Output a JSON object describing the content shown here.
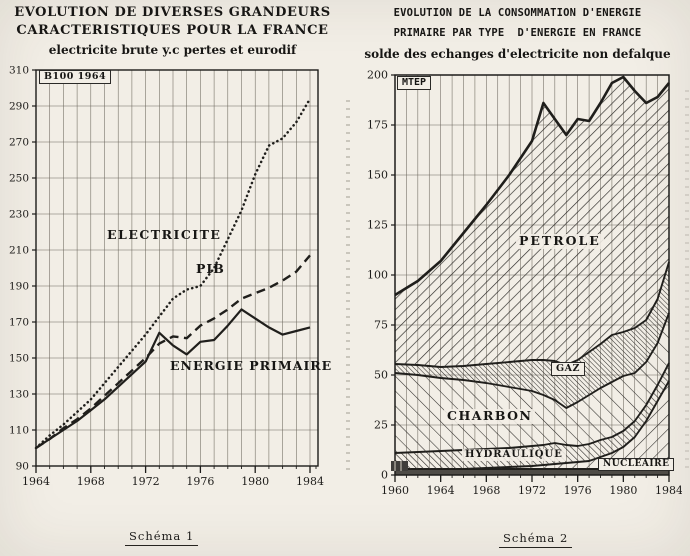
{
  "page_bg": "#f2eee6",
  "ink": "#1d1c1a",
  "left_chart": {
    "title_line1": "EVOLUTION DE DIVERSES GRANDEURS",
    "title_line2": "CARACTERISTIQUES POUR LA FRANCE",
    "subtitle": "electricite brute y.c pertes et eurodif",
    "corner_box": "B100 1964",
    "caption": "Schéma 1"
  },
  "right_chart": {
    "title_line1": "EVOLUTION DE LA CONSOMMATION D'ENERGIE",
    "title_line2": "PRIMAIRE PAR TYPE  D'ENERGIE EN FRANCE",
    "subtitle": "solde des echanges d'electricite non defalque",
    "corner_box": "MTEP",
    "caption": "Schéma 2"
  },
  "chart_data": [
    {
      "type": "line",
      "title": "EVOLUTION DE DIVERSES GRANDEURS CARACTERISTIQUES POUR LA FRANCE",
      "subtitle": "electricite brute y.c pertes et eurodif",
      "index_base": "B100 1964",
      "x": [
        1964,
        1965,
        1966,
        1967,
        1968,
        1969,
        1970,
        1971,
        1972,
        1973,
        1974,
        1975,
        1976,
        1977,
        1978,
        1979,
        1980,
        1981,
        1982,
        1983,
        1984
      ],
      "x_range": [
        1964,
        1984
      ],
      "y_range": [
        90,
        310
      ],
      "y_ticks": [
        90,
        110,
        130,
        150,
        170,
        190,
        210,
        230,
        250,
        270,
        290,
        310
      ],
      "x_ticks": [
        1964,
        1968,
        1972,
        1976,
        1980,
        1984
      ],
      "grid": true,
      "series": [
        {
          "name": "ELECTRICITE",
          "line_style": "dotted",
          "values": [
            100,
            107,
            113,
            120,
            127,
            136,
            145,
            154,
            163,
            173,
            183,
            188,
            190,
            200,
            216,
            232,
            252,
            268,
            272,
            281,
            294
          ]
        },
        {
          "name": "PIB",
          "line_style": "dashed",
          "values": [
            100,
            105,
            111,
            116,
            122,
            129,
            136,
            143,
            150,
            158,
            162,
            161,
            168,
            172,
            177,
            183,
            186,
            189,
            193,
            198,
            207
          ]
        },
        {
          "name": "ENERGIE PRIMAIRE",
          "line_style": "solid",
          "values": [
            100,
            105,
            110,
            115,
            121,
            127,
            134,
            141,
            148,
            164,
            157,
            152,
            159,
            160,
            168,
            177,
            172,
            167,
            163,
            165,
            167
          ]
        }
      ]
    },
    {
      "type": "area",
      "stacked": true,
      "title": "EVOLUTION DE LA CONSOMMATION D'ENERGIE PRIMAIRE PAR TYPE D'ENERGIE EN FRANCE",
      "subtitle": "solde des echanges d'electricite non defalque",
      "unit": "MTEP",
      "x": [
        1960,
        1962,
        1964,
        1966,
        1968,
        1970,
        1972,
        1973,
        1974,
        1975,
        1976,
        1977,
        1978,
        1979,
        1980,
        1981,
        1982,
        1983,
        1984
      ],
      "x_range": [
        1960,
        1984
      ],
      "y_range": [
        0,
        200
      ],
      "y_ticks": [
        0,
        25,
        50,
        75,
        100,
        125,
        150,
        175,
        200
      ],
      "x_ticks": [
        1960,
        1964,
        1968,
        1972,
        1976,
        1980,
        1984
      ],
      "grid": true,
      "series": [
        {
          "name": "",
          "hatch": "solid-dark",
          "values": [
            3,
            3,
            3,
            3,
            3,
            3,
            3,
            3,
            3,
            3,
            3,
            3,
            3,
            3,
            4,
            4,
            4,
            4,
            4
          ]
        },
        {
          "name": "NUCLEAIRE",
          "hatch": "diag-up-sparse",
          "values": [
            0,
            0,
            0,
            0,
            0.5,
            1,
            1.5,
            2,
            2.5,
            3,
            3.5,
            4,
            6,
            8,
            10,
            15,
            23,
            33,
            43
          ]
        },
        {
          "name": "HYDRAULIQUE",
          "hatch": "diag-down-medium",
          "values": [
            8,
            8.5,
            9,
            9.5,
            9.5,
            9.5,
            10,
            10,
            10.5,
            9,
            8,
            8.5,
            8.5,
            8,
            8,
            8,
            8,
            8,
            9
          ]
        },
        {
          "name": "CHARBON",
          "hatch": "diag-down-wide",
          "values": [
            40,
            38.5,
            36.5,
            35,
            33,
            30.5,
            27.5,
            25,
            21.5,
            18.5,
            22,
            24.5,
            26,
            27.5,
            27.5,
            24,
            21.5,
            21,
            25
          ]
        },
        {
          "name": "GAZ",
          "hatch": "diag-down-dense",
          "values": [
            4.5,
            5,
            5.5,
            7,
            9.5,
            12.5,
            15.5,
            17.5,
            19.5,
            21.5,
            21,
            21.5,
            22,
            23.5,
            22,
            22.5,
            21,
            22,
            25.5
          ]
        },
        {
          "name": "PETROLE",
          "hatch": "diag-up-medium",
          "values": [
            34.5,
            42,
            53,
            66.5,
            79.5,
            93.5,
            109.5,
            128.5,
            121,
            115,
            120.5,
            115.5,
            120.5,
            126,
            127.5,
            118.5,
            108.5,
            101,
            89.5
          ]
        }
      ]
    }
  ]
}
